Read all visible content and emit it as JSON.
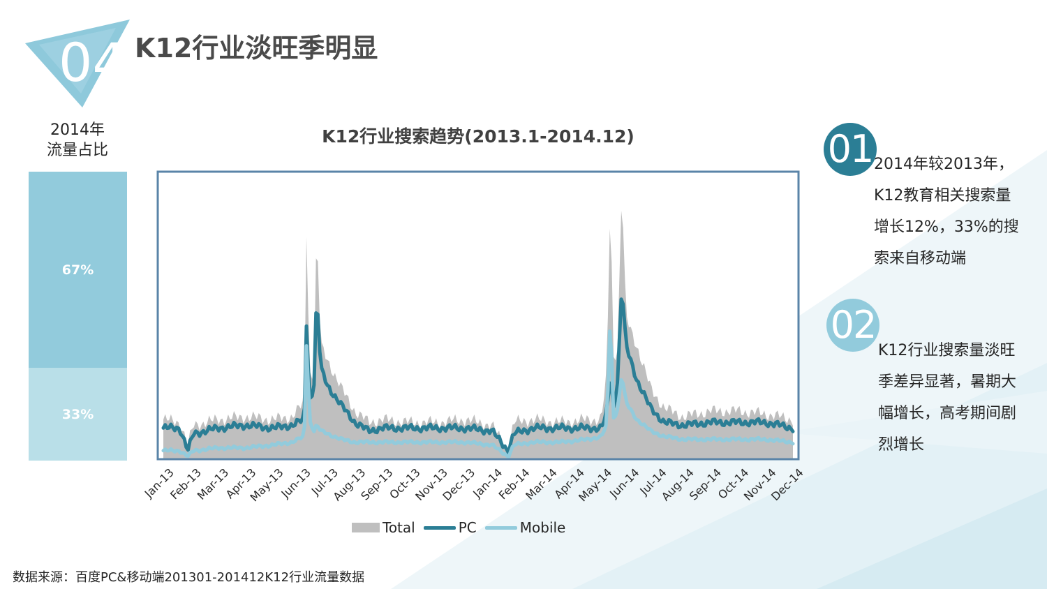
{
  "slide": {
    "badge_number": "04",
    "title": "K12行业淡旺季明显",
    "share": {
      "label_line1": "2014年",
      "label_line2": "流量占比",
      "pc_percent": "67%",
      "mobile_percent": "33%",
      "pc_value": 67,
      "mobile_value": 33
    },
    "points": [
      {
        "number": "01",
        "text": "2014年较2013年，K12教育相关搜索量增长12%，33%的搜索来自移动端"
      },
      {
        "number": "02",
        "text": " K12行业搜索量淡旺季差异显著，暑期大幅增长，高考期间剧烈增长"
      }
    ],
    "source": "数据来源：百度PC&移动端201301-201412K12行业流量数据"
  },
  "colors": {
    "total": "#bfbfbf",
    "pc": "#2b7e95",
    "mobile": "#92cbdc",
    "frame": "#5a84a8"
  },
  "chart_data": {
    "type": "area",
    "title": "K12行业搜索趋势(2013.1-2014.12)",
    "categories": [
      "Jan-13",
      "Feb-13",
      "Mar-13",
      "Apr-13",
      "May-13",
      "Jun-13",
      "Jul-13",
      "Aug-13",
      "Sep-13",
      "Oct-13",
      "Nov-13",
      "Dec-13",
      "Jan-14",
      "Feb-14",
      "Mar-14",
      "Apr-14",
      "May-14",
      "Jun-14",
      "Jul-14",
      "Aug-14",
      "Sep-14",
      "Oct-14",
      "Nov-14",
      "Dec-14"
    ],
    "ylim": [
      0,
      100
    ],
    "legend_position": "bottom",
    "grid": false,
    "series": [
      {
        "name": "Total",
        "kind": "area",
        "color": "#bfbfbf",
        "keyframes": [
          [
            0,
            14
          ],
          [
            0.6,
            13
          ],
          [
            0.9,
            5
          ],
          [
            1.1,
            12
          ],
          [
            2,
            14
          ],
          [
            3,
            15
          ],
          [
            4,
            14
          ],
          [
            4.7,
            15
          ],
          [
            5.15,
            20
          ],
          [
            5.25,
            98
          ],
          [
            5.32,
            30
          ],
          [
            5.5,
            30
          ],
          [
            5.6,
            82
          ],
          [
            5.75,
            40
          ],
          [
            6,
            35
          ],
          [
            6.5,
            25
          ],
          [
            7,
            17
          ],
          [
            7.5,
            13
          ],
          [
            8,
            14
          ],
          [
            9,
            13
          ],
          [
            10,
            13
          ],
          [
            11,
            14
          ],
          [
            12,
            12
          ],
          [
            12.6,
            3
          ],
          [
            12.8,
            13
          ],
          [
            13.5,
            14
          ],
          [
            14.5,
            13
          ],
          [
            15.5,
            14
          ],
          [
            16,
            14
          ],
          [
            16.2,
            30
          ],
          [
            16.33,
            93
          ],
          [
            16.45,
            35
          ],
          [
            16.6,
            40
          ],
          [
            16.75,
            97
          ],
          [
            16.9,
            50
          ],
          [
            17.3,
            40
          ],
          [
            17.8,
            25
          ],
          [
            18.3,
            18
          ],
          [
            19,
            15
          ],
          [
            20,
            17
          ],
          [
            21,
            17
          ],
          [
            22,
            16
          ],
          [
            23,
            14
          ]
        ]
      },
      {
        "name": "PC",
        "kind": "line",
        "color": "#2b7e95",
        "keyframes": [
          [
            0,
            11
          ],
          [
            0.6,
            11
          ],
          [
            0.9,
            3
          ],
          [
            1.1,
            9
          ],
          [
            2,
            11
          ],
          [
            3,
            12
          ],
          [
            4,
            11
          ],
          [
            4.7,
            12
          ],
          [
            5.15,
            14
          ],
          [
            5.25,
            58
          ],
          [
            5.32,
            20
          ],
          [
            5.5,
            25
          ],
          [
            5.6,
            59
          ],
          [
            5.75,
            32
          ],
          [
            6,
            26
          ],
          [
            6.5,
            19
          ],
          [
            7,
            13
          ],
          [
            7.5,
            10
          ],
          [
            8,
            11
          ],
          [
            9,
            11
          ],
          [
            10,
            11
          ],
          [
            11,
            11
          ],
          [
            12,
            10
          ],
          [
            12.6,
            3
          ],
          [
            12.8,
            9
          ],
          [
            13.5,
            11
          ],
          [
            14.5,
            11
          ],
          [
            15.5,
            11
          ],
          [
            16,
            11
          ],
          [
            16.2,
            16
          ],
          [
            16.33,
            30
          ],
          [
            16.45,
            18
          ],
          [
            16.6,
            28
          ],
          [
            16.75,
            62
          ],
          [
            16.9,
            40
          ],
          [
            17.3,
            28
          ],
          [
            17.8,
            18
          ],
          [
            18.3,
            13
          ],
          [
            19,
            12
          ],
          [
            20,
            13
          ],
          [
            21,
            13
          ],
          [
            22,
            13
          ],
          [
            23,
            11
          ]
        ]
      },
      {
        "name": "Mobile",
        "kind": "line",
        "color": "#92cbdc",
        "keyframes": [
          [
            0,
            3
          ],
          [
            0.6,
            3
          ],
          [
            0.9,
            1
          ],
          [
            1.1,
            3
          ],
          [
            2,
            4
          ],
          [
            3,
            4
          ],
          [
            4,
            5
          ],
          [
            4.7,
            6
          ],
          [
            5.15,
            8
          ],
          [
            5.25,
            50
          ],
          [
            5.32,
            14
          ],
          [
            5.5,
            10
          ],
          [
            5.6,
            12
          ],
          [
            5.75,
            10
          ],
          [
            6,
            9
          ],
          [
            6.5,
            7
          ],
          [
            7,
            6
          ],
          [
            7.5,
            6
          ],
          [
            8,
            6
          ],
          [
            9,
            6
          ],
          [
            10,
            6
          ],
          [
            11,
            6
          ],
          [
            12,
            5
          ],
          [
            12.6,
            1
          ],
          [
            12.8,
            5
          ],
          [
            13.5,
            6
          ],
          [
            14.5,
            6
          ],
          [
            15.5,
            7
          ],
          [
            16,
            8
          ],
          [
            16.2,
            12
          ],
          [
            16.33,
            52
          ],
          [
            16.45,
            14
          ],
          [
            16.6,
            18
          ],
          [
            16.75,
            30
          ],
          [
            16.9,
            20
          ],
          [
            17.3,
            14
          ],
          [
            17.8,
            10
          ],
          [
            18.3,
            8
          ],
          [
            19,
            7
          ],
          [
            20,
            7
          ],
          [
            21,
            7
          ],
          [
            22,
            7
          ],
          [
            23,
            6
          ]
        ]
      }
    ]
  }
}
